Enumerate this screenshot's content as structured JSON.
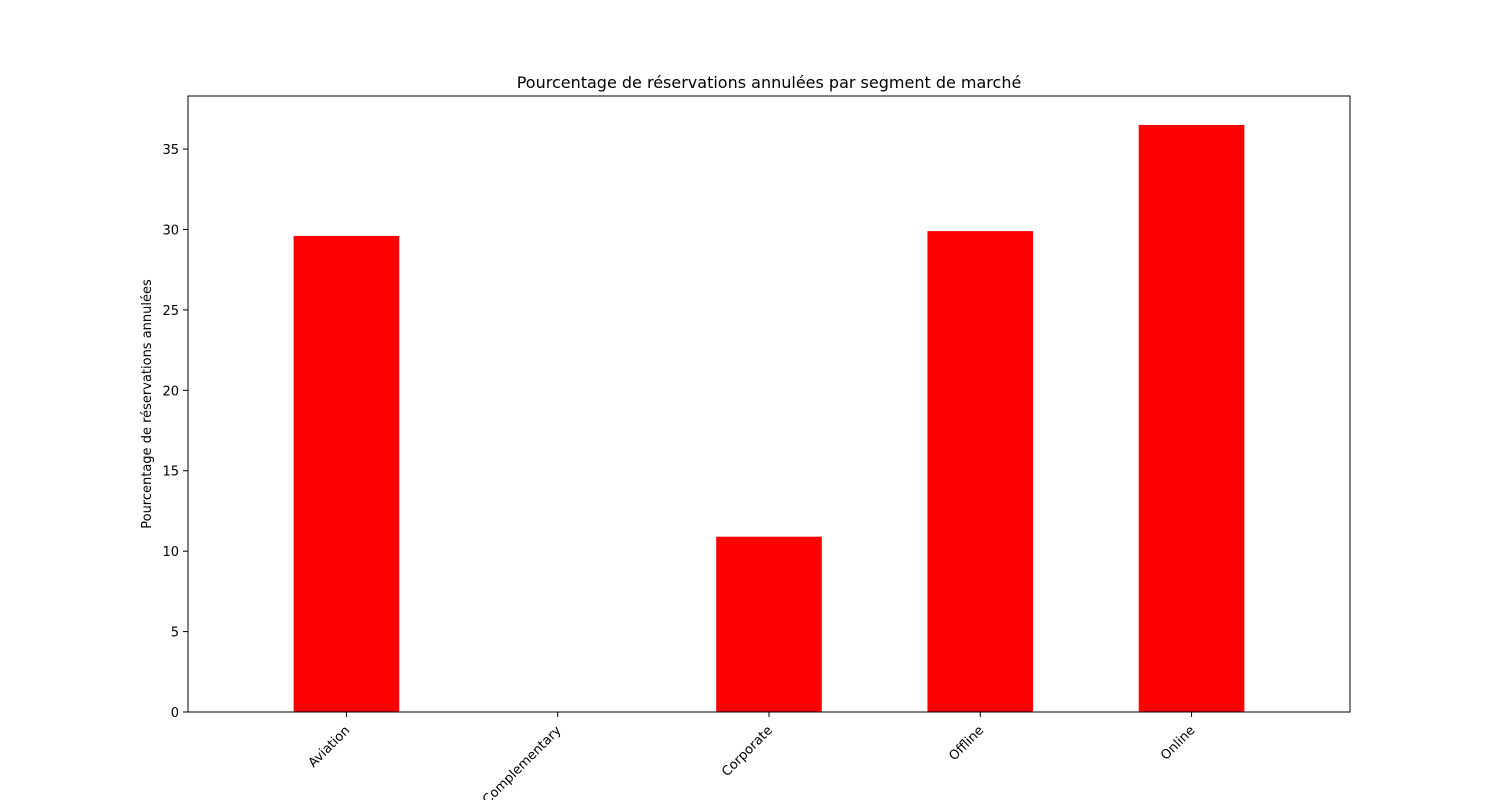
{
  "chart_data": {
    "type": "bar",
    "title": "Pourcentage de réservations annulées par segment de marché",
    "xlabel": "",
    "ylabel": "Pourcentage de réservations annulées",
    "categories": [
      "Aviation",
      "Complementary",
      "Corporate",
      "Offline",
      "Online"
    ],
    "values": [
      29.6,
      0.0,
      10.9,
      29.9,
      36.5
    ],
    "ylim": [
      0,
      38.3
    ],
    "yticks": [
      0,
      5,
      10,
      15,
      20,
      25,
      30,
      35
    ],
    "bar_color": "#ff0000",
    "grid": false,
    "legend": "none"
  }
}
